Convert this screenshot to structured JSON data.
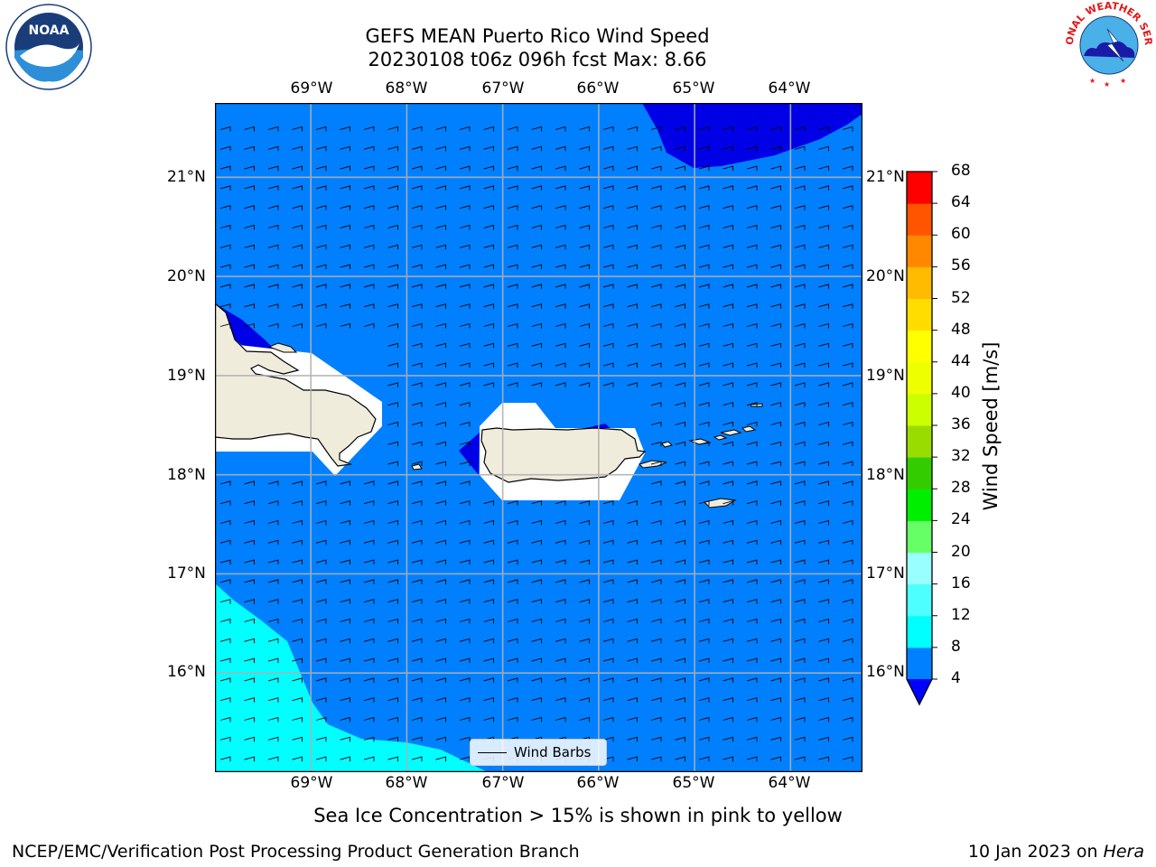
{
  "title": {
    "line1": "GEFS MEAN Puerto Rico Wind Speed",
    "line2": "20230108 t06z 096h fcst   Max: 8.66"
  },
  "map": {
    "lon_labels": [
      "69°W",
      "68°W",
      "67°W",
      "66°W",
      "65°W",
      "64°W"
    ],
    "lat_labels": [
      "21°N",
      "20°N",
      "19°N",
      "18°N",
      "17°N",
      "16°N"
    ],
    "lon_extent": [
      -70.0,
      -63.25
    ],
    "lat_extent": [
      15.0,
      21.75
    ],
    "base_color": "#0080ff",
    "low_color": "#0000e6",
    "higher_color": "#00ffff",
    "land_color": "#efecdc",
    "wind_barbs_visible": true
  },
  "legend": {
    "wind_barbs_label": "Wind Barbs"
  },
  "colorbar": {
    "label": "Wind Speed [m/s]",
    "ticks": [
      "68",
      "64",
      "60",
      "56",
      "52",
      "48",
      "44",
      "40",
      "36",
      "32",
      "28",
      "24",
      "20",
      "16",
      "12",
      "8",
      "4"
    ],
    "levels": [
      4,
      8,
      12,
      16,
      20,
      24,
      28,
      32,
      36,
      40,
      44,
      48,
      52,
      56,
      60,
      64,
      68
    ],
    "colors": [
      "#0080ff",
      "#00ffff",
      "#4dffff",
      "#99ffff",
      "#66ff66",
      "#00ee00",
      "#33cc00",
      "#99dd00",
      "#ccff00",
      "#eeff00",
      "#ffff00",
      "#ffdd00",
      "#ffbb00",
      "#ff8800",
      "#ff5500",
      "#ff2200"
    ],
    "under_color": "#0000ff",
    "top_color": "#ff0000"
  },
  "subtitle": "Sea Ice Concentration > 15% is shown in pink to yellow",
  "footer": {
    "left": "NCEP/EMC/Verification Post Processing Product Generation Branch",
    "right_prefix": "10 Jan 2023 on ",
    "right_host": "Hera"
  },
  "logos": {
    "noaa": "NOAA",
    "nws_ring": "NATIONAL WEATHER SERVICE"
  }
}
